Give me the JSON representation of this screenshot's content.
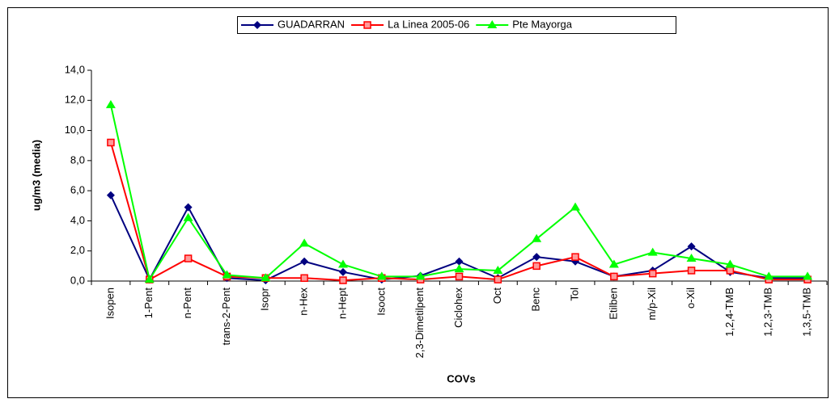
{
  "chart_data": {
    "type": "line",
    "x_label": "COVs",
    "y_label": "ug/m3 (media)",
    "categories": [
      "Isopen",
      "1-Pent",
      "n-Pent",
      "trans-2-Pent",
      "Isopr",
      "n-Hex",
      "n-Hept",
      "Isooct",
      "2,3-Dimetilpent",
      "Ciclohex",
      "Oct",
      "Benc",
      "Tol",
      "Etilben",
      "m/p-Xil",
      "o-Xil",
      "1,2,4-TMB",
      "1,2,3-TMB",
      "1,3,5-TMB"
    ],
    "series": [
      {
        "name": "GUADARRAN",
        "color": "#000080",
        "marker": "diamond",
        "values": [
          5.7,
          0.1,
          4.9,
          0.2,
          0.05,
          1.3,
          0.6,
          0.1,
          0.35,
          1.3,
          0.2,
          1.6,
          1.3,
          0.3,
          0.7,
          2.3,
          0.6,
          0.2,
          0.2
        ]
      },
      {
        "name": "La Linea 2005-06",
        "color": "#ff0000",
        "marker": "square",
        "values": [
          9.2,
          0.1,
          1.5,
          0.3,
          0.2,
          0.2,
          0.05,
          0.2,
          0.1,
          0.3,
          0.1,
          1.0,
          1.6,
          0.3,
          0.5,
          0.7,
          0.7,
          0.1,
          0.1
        ]
      },
      {
        "name": "Pte Mayorga",
        "color": "#00ff00",
        "marker": "triangle",
        "values": [
          11.7,
          0.1,
          4.2,
          0.4,
          0.2,
          2.5,
          1.1,
          0.3,
          0.3,
          0.8,
          0.7,
          2.8,
          4.9,
          1.1,
          1.9,
          1.5,
          1.1,
          0.3,
          0.3
        ]
      }
    ],
    "ylim": [
      0,
      14
    ],
    "yticks": [
      {
        "value": 0,
        "label": "0,0"
      },
      {
        "value": 2,
        "label": "2,0"
      },
      {
        "value": 4,
        "label": "4,0"
      },
      {
        "value": 6,
        "label": "6,0"
      },
      {
        "value": 8,
        "label": "8,0"
      },
      {
        "value": 10,
        "label": "10,0"
      },
      {
        "value": 12,
        "label": "12,0"
      },
      {
        "value": 14,
        "label": "14,0"
      }
    ],
    "legend": "top",
    "grid": false
  }
}
